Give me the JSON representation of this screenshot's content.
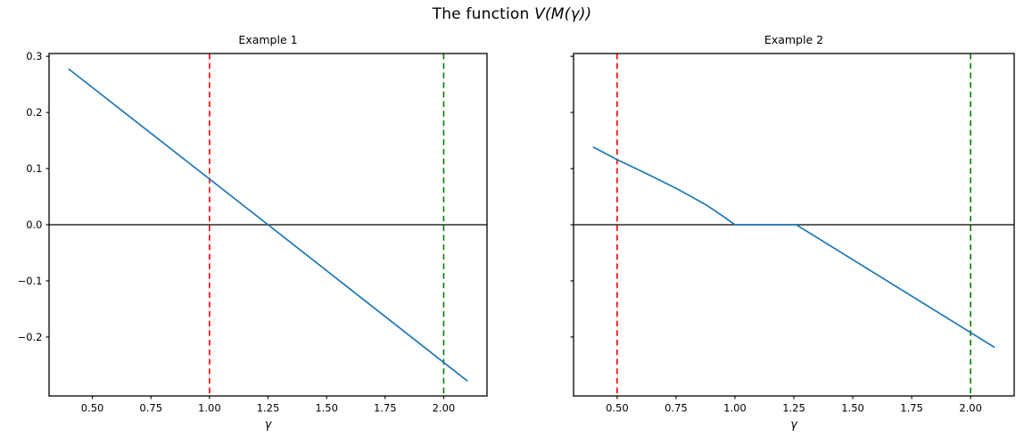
{
  "suptitle": {
    "prefix": "The function ",
    "math": "V(M(γ))"
  },
  "colors": {
    "curve": "#1f77b4",
    "red_vline": "#ff0000",
    "green_vline": "#008000",
    "axis": "#000000",
    "zero_line": "#000000"
  },
  "chart_data": [
    {
      "type": "line",
      "title": "Example 1",
      "xlabel": "γ",
      "ylabel": "",
      "xlim": [
        0.315,
        2.185
      ],
      "ylim": [
        -0.305,
        0.305
      ],
      "grid": false,
      "xticks": [
        0.5,
        0.75,
        1.0,
        1.25,
        1.5,
        1.75,
        2.0
      ],
      "xtick_labels": [
        "0.50",
        "0.75",
        "1.00",
        "1.25",
        "1.50",
        "1.75",
        "2.00"
      ],
      "yticks": [
        0.3,
        0.2,
        0.1,
        0.0,
        -0.1,
        -0.2
      ],
      "ytick_labels": [
        "0.3",
        "0.2",
        "0.1",
        "0.0",
        "−0.1",
        "−0.2"
      ],
      "show_ytick_labels": true,
      "hline": 0.0,
      "vlines": [
        {
          "x": 1.0,
          "color": "#ff0000",
          "style": "dashed",
          "name": "red-vline"
        },
        {
          "x": 2.0,
          "color": "#008000",
          "style": "dashed",
          "name": "green-vline"
        }
      ],
      "series": [
        {
          "name": "V(M(γ))",
          "color": "#1f77b4",
          "points": [
            [
              0.4,
              0.277
            ],
            [
              1.25,
              0.0
            ],
            [
              2.1,
              -0.278
            ]
          ]
        }
      ]
    },
    {
      "type": "line",
      "title": "Example 2",
      "xlabel": "γ",
      "ylabel": "",
      "xlim": [
        0.315,
        2.185
      ],
      "ylim": [
        -0.305,
        0.305
      ],
      "grid": false,
      "xticks": [
        0.5,
        0.75,
        1.0,
        1.25,
        1.5,
        1.75,
        2.0
      ],
      "xtick_labels": [
        "0.50",
        "0.75",
        "1.00",
        "1.25",
        "1.50",
        "1.75",
        "2.00"
      ],
      "yticks": [
        0.3,
        0.2,
        0.1,
        0.0,
        -0.1,
        -0.2
      ],
      "ytick_labels": [
        "0.3",
        "0.2",
        "0.1",
        "0.0",
        "−0.1",
        "−0.2"
      ],
      "show_ytick_labels": false,
      "hline": 0.0,
      "vlines": [
        {
          "x": 0.5,
          "color": "#ff0000",
          "style": "dashed",
          "name": "red-vline"
        },
        {
          "x": 2.0,
          "color": "#008000",
          "style": "dashed",
          "name": "green-vline"
        }
      ],
      "series": [
        {
          "name": "V(M(γ))",
          "color": "#1f77b4",
          "points": [
            [
              0.4,
              0.138
            ],
            [
              0.5,
              0.116
            ],
            [
              0.625,
              0.091
            ],
            [
              0.75,
              0.065
            ],
            [
              0.875,
              0.036
            ],
            [
              0.95,
              0.015
            ],
            [
              1.0,
              0.0
            ],
            [
              1.26,
              0.0
            ],
            [
              2.1,
              -0.218
            ]
          ]
        }
      ]
    }
  ]
}
